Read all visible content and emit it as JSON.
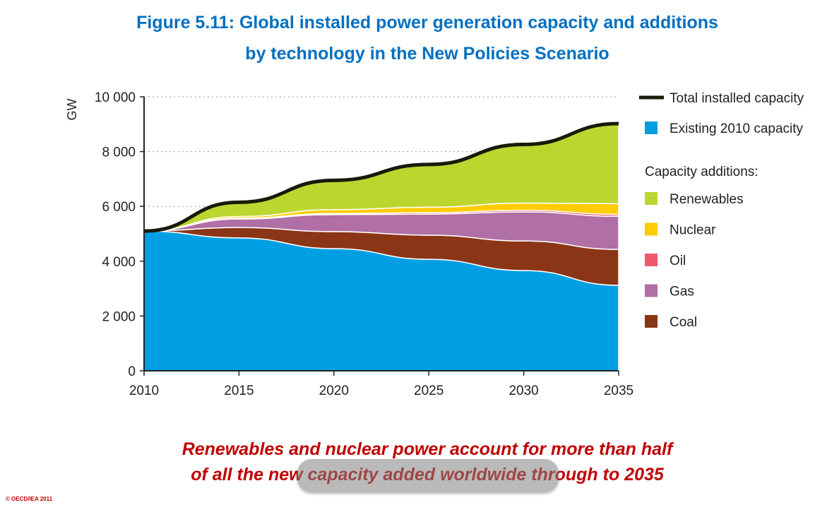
{
  "chart_data": {
    "type": "area",
    "stacked": true,
    "title": "Figure 5.11: Global installed power generation capacity and additions",
    "title_line2": "by technology in the New Policies Scenario",
    "ylabel": "GW",
    "xlabel": "",
    "x": [
      2010,
      2015,
      2020,
      2025,
      2030,
      2035
    ],
    "xticks": [
      "2010",
      "2015",
      "2020",
      "2025",
      "2030",
      "2035"
    ],
    "ylim": [
      0,
      10000
    ],
    "yticks": [
      0,
      2000,
      4000,
      6000,
      8000,
      10000
    ],
    "ytick_labels": [
      "0",
      "2 000",
      "4 000",
      "6 000",
      "8 000",
      "10 000"
    ],
    "grid": "horizontal dotted",
    "legend_placement": "right",
    "legend_subheading": "Capacity additions:",
    "series": [
      {
        "name": "Existing 2010 capacity",
        "color": "#009fe3",
        "values": [
          5100,
          4850,
          4460,
          4070,
          3660,
          3120
        ]
      },
      {
        "name": "Coal",
        "color": "#8b3517",
        "values": [
          0,
          380,
          620,
          880,
          1080,
          1310
        ]
      },
      {
        "name": "Gas",
        "color": "#b06fa5",
        "values": [
          0,
          310,
          620,
          770,
          1060,
          1210
        ]
      },
      {
        "name": "Oil",
        "color": "#ee5a6a",
        "values": [
          0,
          30,
          40,
          50,
          60,
          70
        ]
      },
      {
        "name": "Nuclear",
        "color": "#ffcc00",
        "values": [
          0,
          60,
          140,
          200,
          260,
          390
        ]
      },
      {
        "name": "Renewables",
        "color": "#bcd630",
        "values": [
          0,
          520,
          1070,
          1560,
          2140,
          2920
        ]
      }
    ],
    "total": {
      "name": "Total installed capacity",
      "color": "#1a1a0a",
      "values": [
        5100,
        6150,
        6950,
        7530,
        8260,
        9020
      ]
    }
  },
  "caption_line1": "Renewables and nuclear power account for more than half",
  "caption_line2": "of all the new capacity added worldwide through to 2035",
  "copyright": "© OECD/IEA 2011"
}
